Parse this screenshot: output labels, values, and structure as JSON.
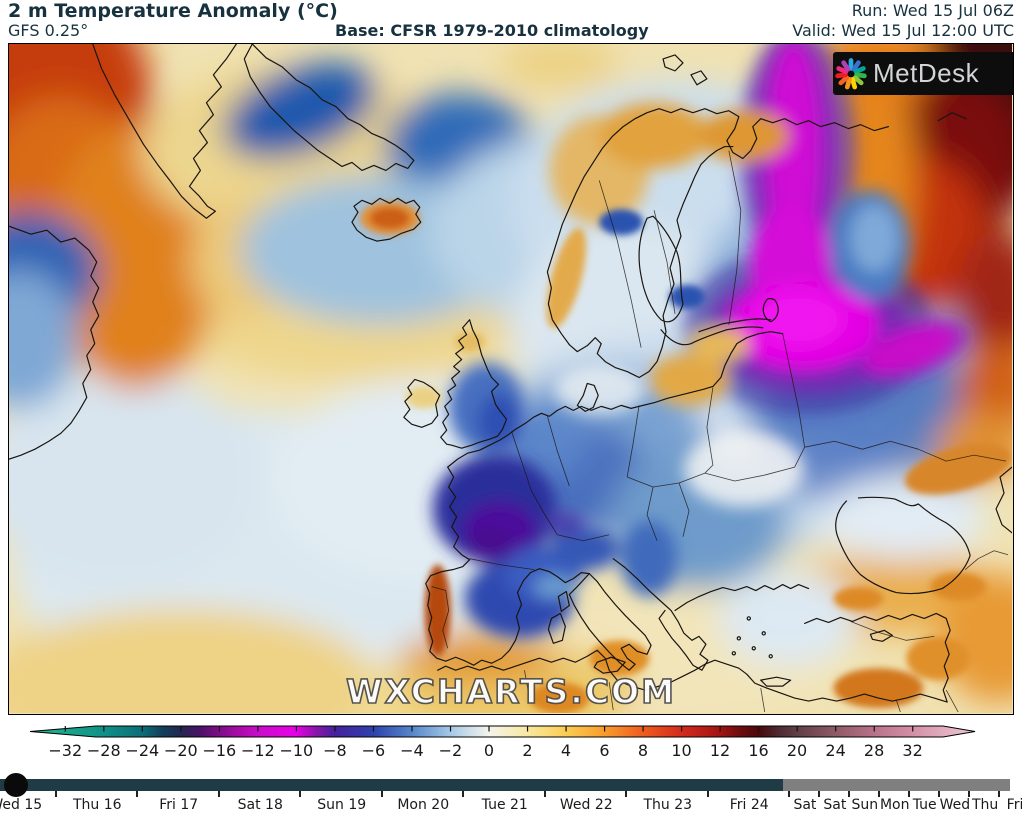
{
  "header": {
    "title": "2 m Temperature Anomaly (°C)",
    "model": "GFS 0.25°",
    "base": "Base: CFSR 1979-2010 climatology",
    "run": "Run: Wed 15 Jul 06Z",
    "valid": "Valid: Wed 15 Jul 12:00 UTC"
  },
  "branding": {
    "logo_text": "MetDesk",
    "watermark": "WXCHARTS.COM"
  },
  "colorbar": {
    "unit": "°C",
    "labels": [
      "−32",
      "−28",
      "−24",
      "−20",
      "−16",
      "−12",
      "−10",
      "−8",
      "−6",
      "−4",
      "−2",
      "0",
      "2",
      "4",
      "6",
      "8",
      "10",
      "12",
      "16",
      "20",
      "24",
      "28",
      "32"
    ]
  },
  "timeline": {
    "days": [
      "Wed 15",
      "Thu 16",
      "Fri 17",
      "Sat 18",
      "Sun 19",
      "Mon 20",
      "Tue 21",
      "Wed 22",
      "Thu 23",
      "Fri 24"
    ],
    "extended_days": [
      "Sat",
      "Sat",
      "Sun",
      "Mon",
      "Tue",
      "Wed",
      "Thu",
      "Fri"
    ]
  },
  "colors": {
    "header_text": "#17323e",
    "map_border": "#000000",
    "timeline_active": "#1f3c46",
    "timeline_extended": "#7f7f7f",
    "slider_knob": "#0a0a0a",
    "scale_cold_end_green": "#2ab893",
    "scale_cold_magenta": "#e800e8",
    "scale_zero_white": "#f5f4ec",
    "scale_warm_darkest": "#4a090c",
    "scale_warm_end_pink": "#eec9d6",
    "logo_bg": "#0d0d0d",
    "logo_text_color": "#d2d4d6",
    "watermark_color": "#fdfdfd"
  }
}
